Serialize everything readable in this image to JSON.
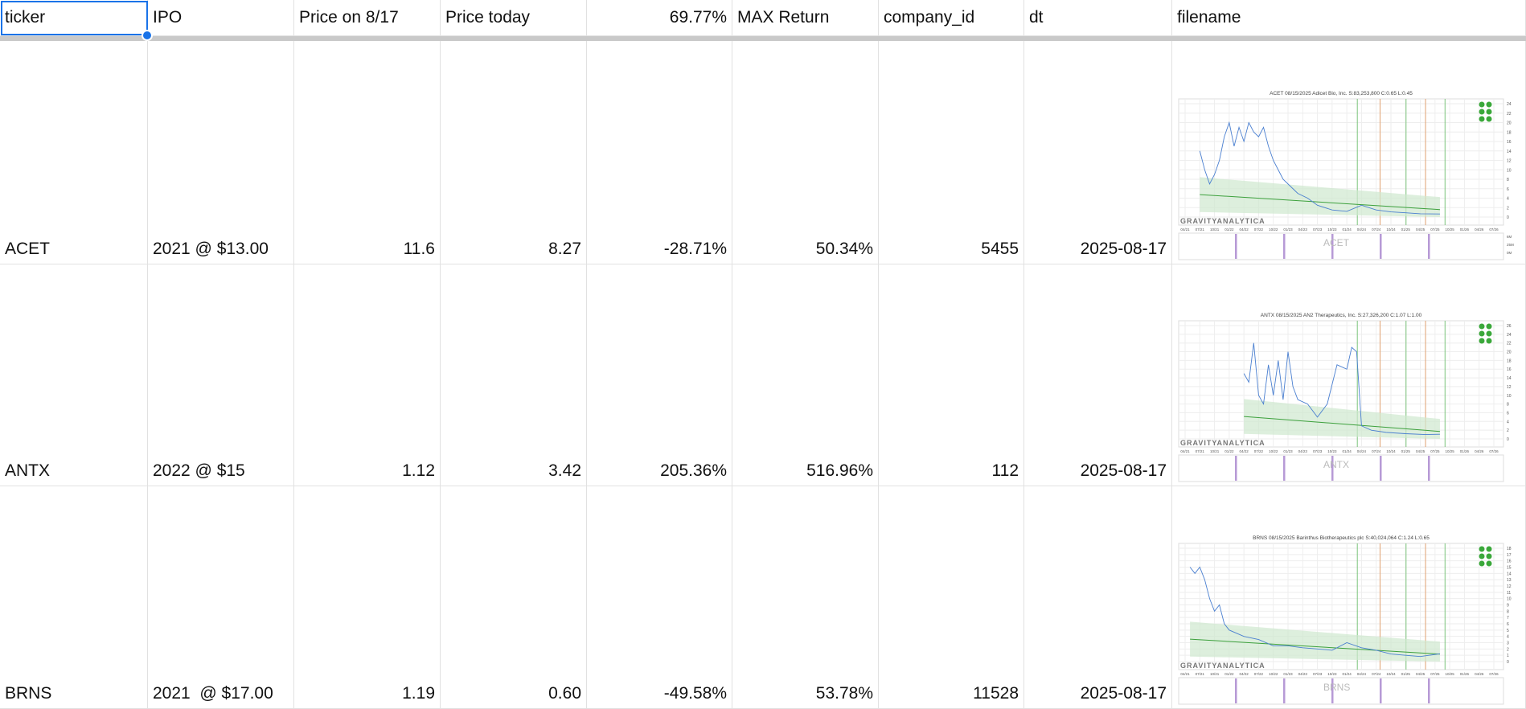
{
  "headers": [
    "ticker",
    "IPO",
    "Price on 8/17",
    "Price today",
    "69.77%",
    "MAX Return",
    "company_id",
    "dt",
    "filename"
  ],
  "rows": [
    {
      "ticker": "ACET",
      "ipo": "2021 @ $13.00",
      "price_817": "11.6",
      "price_today": "8.27",
      "pct": "-28.71%",
      "max_return": "50.34%",
      "company_id": "5455",
      "dt": "2025-08-17",
      "chart": {
        "title": "ACET 08/15/2025 Adicet Bio, Inc. S:83,253,800 C:0.65 L:0.45",
        "watermark": "ACET",
        "ylim": [
          0,
          24
        ],
        "ystep": 2,
        "vol_ticks": [
          "6M",
          "25M",
          "0M"
        ],
        "series": [
          [
            "2021-07",
            14
          ],
          [
            "2021-08",
            10
          ],
          [
            "2021-09",
            7
          ],
          [
            "2021-10",
            9
          ],
          [
            "2021-11",
            12
          ],
          [
            "2021-12",
            17
          ],
          [
            "2022-01",
            20
          ],
          [
            "2022-02",
            15
          ],
          [
            "2022-03",
            19
          ],
          [
            "2022-04",
            16
          ],
          [
            "2022-05",
            20
          ],
          [
            "2022-06",
            18
          ],
          [
            "2022-07",
            17
          ],
          [
            "2022-08",
            19
          ],
          [
            "2022-09",
            15
          ],
          [
            "2022-10",
            12
          ],
          [
            "2022-11",
            10
          ],
          [
            "2022-12",
            8
          ],
          [
            "2023-01",
            7
          ],
          [
            "2023-03",
            5
          ],
          [
            "2023-05",
            4
          ],
          [
            "2023-07",
            2.5
          ],
          [
            "2023-10",
            1.5
          ],
          [
            "2024-01",
            1.2
          ],
          [
            "2024-04",
            2.5
          ],
          [
            "2024-07",
            1.5
          ],
          [
            "2024-10",
            1.1
          ],
          [
            "2025-01",
            0.9
          ],
          [
            "2025-04",
            0.7
          ],
          [
            "2025-08",
            0.65
          ]
        ]
      }
    },
    {
      "ticker": "ANTX",
      "ipo": "2022 @ $15",
      "price_817": "1.12",
      "price_today": "3.42",
      "pct": "205.36%",
      "max_return": "516.96%",
      "company_id": "112",
      "dt": "2025-08-17",
      "chart": {
        "title": "ANTX 08/15/2025 AN2 Therapeutics, Inc. S:27,326,200 C:1.07 L:1.00",
        "watermark": "ANTX",
        "ylim": [
          0,
          26
        ],
        "ystep": 2,
        "vol_ticks": [
          "",
          "",
          ""
        ],
        "series": [
          [
            "2022-04",
            15
          ],
          [
            "2022-05",
            13
          ],
          [
            "2022-06",
            22
          ],
          [
            "2022-07",
            10
          ],
          [
            "2022-08",
            8
          ],
          [
            "2022-09",
            17
          ],
          [
            "2022-10",
            10
          ],
          [
            "2022-11",
            18
          ],
          [
            "2022-12",
            9
          ],
          [
            "2023-01",
            20
          ],
          [
            "2023-02",
            12
          ],
          [
            "2023-03",
            9
          ],
          [
            "2023-05",
            8
          ],
          [
            "2023-07",
            5
          ],
          [
            "2023-09",
            8
          ],
          [
            "2023-11",
            17
          ],
          [
            "2024-01",
            16
          ],
          [
            "2024-02",
            21
          ],
          [
            "2024-03",
            20
          ],
          [
            "2024-04",
            3
          ],
          [
            "2024-06",
            2
          ],
          [
            "2024-09",
            1.5
          ],
          [
            "2025-01",
            1.2
          ],
          [
            "2025-05",
            1.0
          ],
          [
            "2025-08",
            1.07
          ]
        ]
      }
    },
    {
      "ticker": "BRNS",
      "ipo": "2021  @ $17.00",
      "price_817": "1.19",
      "price_today": "0.60",
      "pct": "-49.58%",
      "max_return": "53.78%",
      "company_id": "11528",
      "dt": "2025-08-17",
      "chart": {
        "title": "BRNS 08/15/2025 Barinthus Biotherapeutics plc S:40,024,064 C:1.24 L:0.65",
        "watermark": "BRNS",
        "ylim": [
          0,
          18
        ],
        "ystep": 1,
        "vol_ticks": [
          "",
          "",
          ""
        ],
        "series": [
          [
            "2021-05",
            15
          ],
          [
            "2021-06",
            14
          ],
          [
            "2021-07",
            15
          ],
          [
            "2021-08",
            13
          ],
          [
            "2021-09",
            10
          ],
          [
            "2021-10",
            8
          ],
          [
            "2021-11",
            9
          ],
          [
            "2021-12",
            6
          ],
          [
            "2022-01",
            5
          ],
          [
            "2022-04",
            4
          ],
          [
            "2022-07",
            3.5
          ],
          [
            "2022-10",
            2.5
          ],
          [
            "2023-01",
            2.5
          ],
          [
            "2023-04",
            2.2
          ],
          [
            "2023-07",
            2
          ],
          [
            "2023-10",
            1.8
          ],
          [
            "2024-01",
            3
          ],
          [
            "2024-04",
            2.2
          ],
          [
            "2024-07",
            1.8
          ],
          [
            "2024-10",
            1.2
          ],
          [
            "2025-01",
            1
          ],
          [
            "2025-04",
            0.8
          ],
          [
            "2025-08",
            1.24
          ]
        ]
      }
    }
  ],
  "x_axis_labels": [
    "04/21",
    "07/21",
    "10/21",
    "01/22",
    "04/22",
    "07/22",
    "10/22",
    "01/23",
    "04/23",
    "07/23",
    "10/23",
    "01/24",
    "04/24",
    "07/24",
    "10/24",
    "01/25",
    "04/25",
    "07/25",
    "10/25",
    "01/26",
    "04/26",
    "07/26"
  ],
  "logo": "GRAVITYANALYTICA",
  "colors": {
    "selection": "#1a73e8",
    "price_line": "#4a7fd0",
    "trend": "#3ca03c",
    "band": "#cfe8cf"
  }
}
